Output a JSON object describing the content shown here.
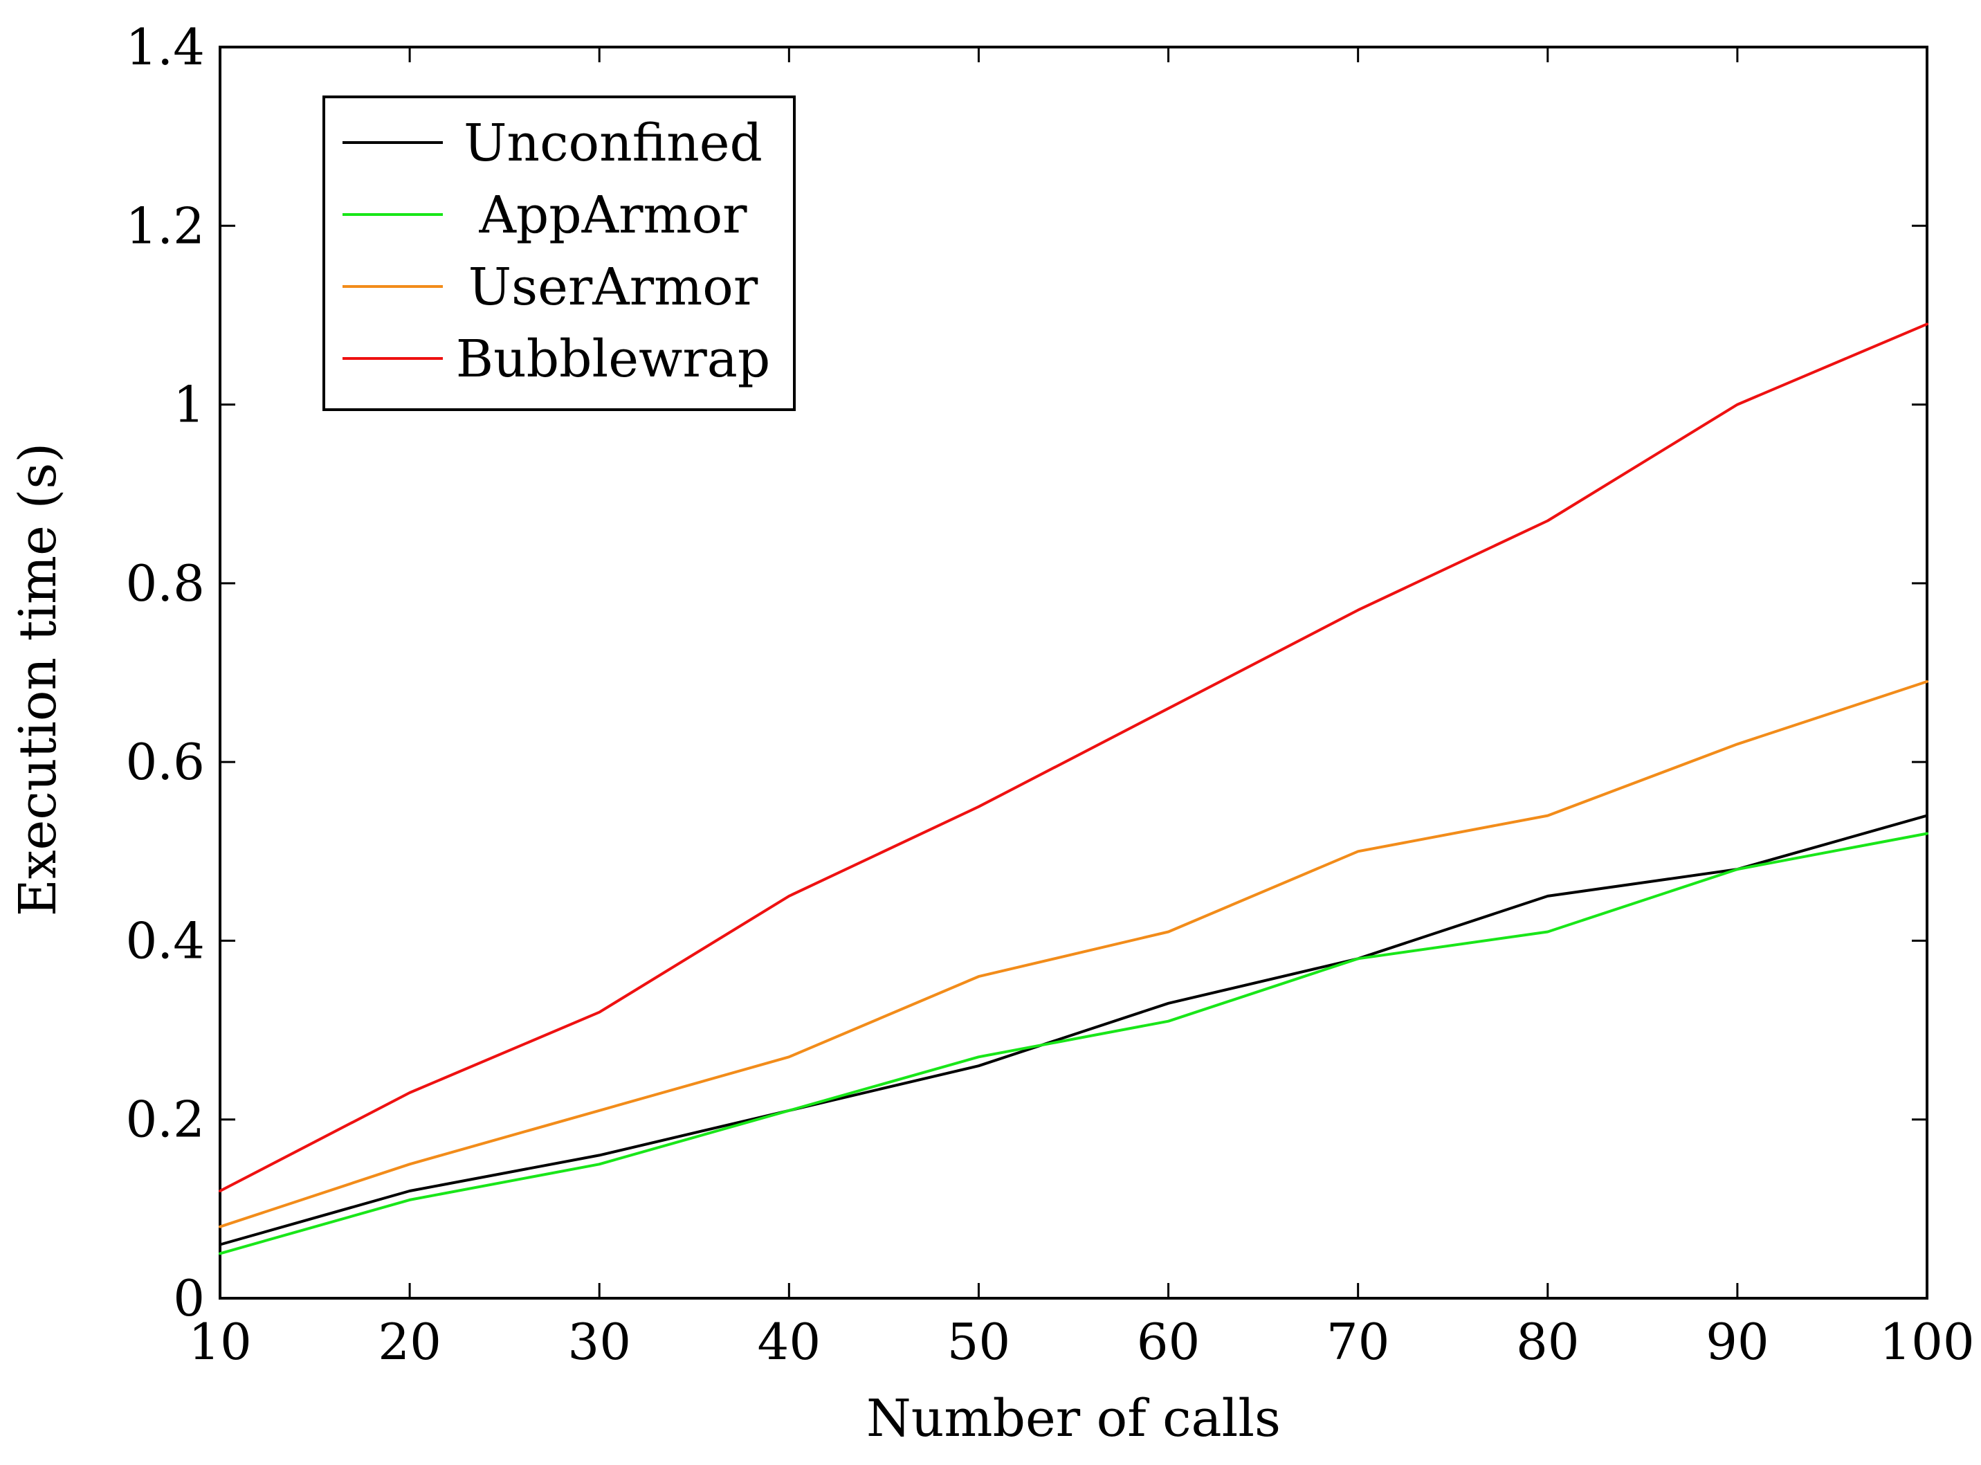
{
  "chart_data": {
    "type": "line",
    "title": "",
    "xlabel": "Number of calls",
    "ylabel": "Execution time (s)",
    "xlim": [
      10,
      100
    ],
    "ylim": [
      0,
      1.4
    ],
    "x": [
      10,
      20,
      30,
      40,
      50,
      60,
      70,
      80,
      90,
      100
    ],
    "x_ticks": [
      "10",
      "20",
      "30",
      "40",
      "50",
      "60",
      "70",
      "80",
      "90",
      "100"
    ],
    "y_ticks": [
      "0",
      "0.2",
      "0.4",
      "0.6",
      "0.8",
      "1",
      "1.2",
      "1.4"
    ],
    "grid": false,
    "legend_position": "top-left",
    "series": [
      {
        "name": "Unconfined",
        "color": "#000000",
        "values": [
          0.06,
          0.12,
          0.16,
          0.21,
          0.26,
          0.33,
          0.38,
          0.45,
          0.48,
          0.54
        ]
      },
      {
        "name": "AppArmor",
        "color": "#19e619",
        "values": [
          0.05,
          0.11,
          0.15,
          0.21,
          0.27,
          0.31,
          0.38,
          0.41,
          0.48,
          0.52
        ]
      },
      {
        "name": "UserArmor",
        "color": "#f28c1a",
        "values": [
          0.08,
          0.15,
          0.21,
          0.27,
          0.36,
          0.41,
          0.5,
          0.54,
          0.62,
          0.69
        ]
      },
      {
        "name": "Bubblewrap",
        "color": "#ee1111",
        "values": [
          0.12,
          0.23,
          0.32,
          0.45,
          0.55,
          0.66,
          0.77,
          0.87,
          1.0,
          1.09
        ]
      }
    ]
  }
}
